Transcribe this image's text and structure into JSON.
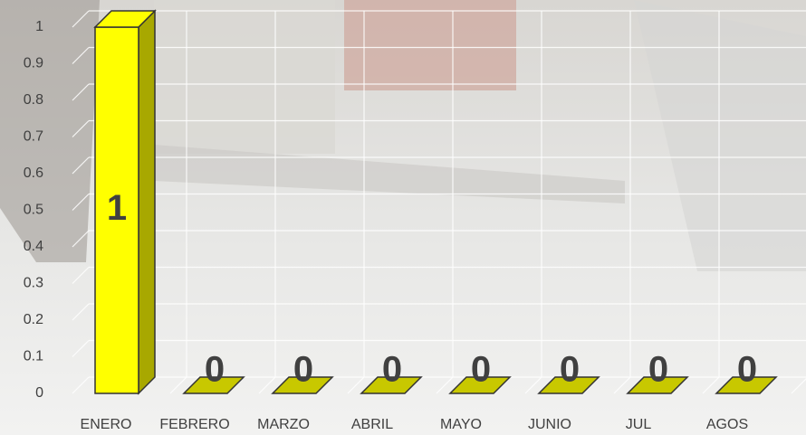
{
  "chart_data": {
    "type": "bar3d",
    "categories": [
      "ENERO",
      "FEBRERO",
      "MARZO",
      "ABRIL",
      "MAYO",
      "JUNIO",
      "JUL",
      "AGOS"
    ],
    "values": [
      1,
      0,
      0,
      0,
      0,
      0,
      0,
      0
    ],
    "color": "#ffff00",
    "ylim": [
      0,
      1
    ],
    "yticks": [
      0,
      0.1,
      0.2,
      0.3,
      0.4,
      0.5,
      0.6,
      0.7,
      0.8,
      0.9,
      1
    ],
    "grid": true
  }
}
